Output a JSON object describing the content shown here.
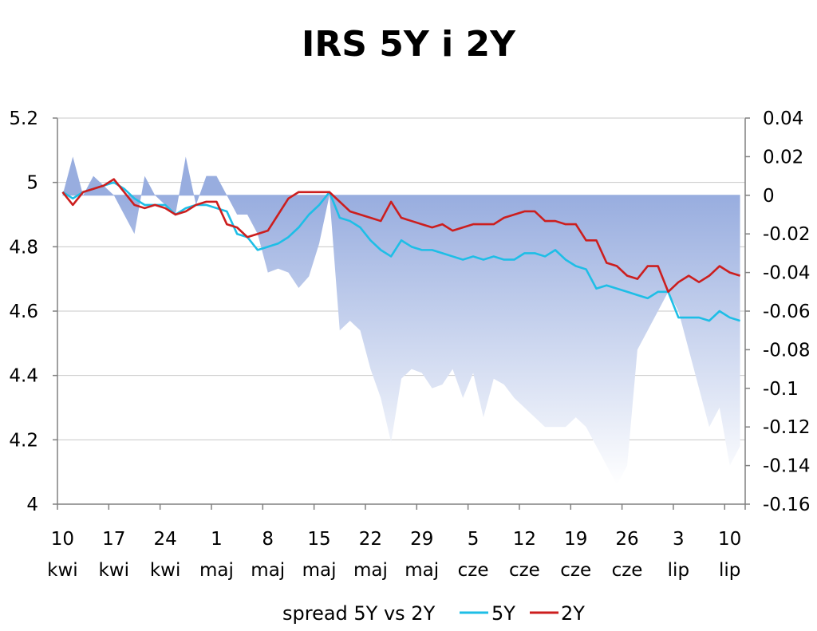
{
  "chart_data": {
    "type": "line",
    "title": "IRS 5Y i 2Y",
    "left_axis": {
      "min": 4,
      "max": 5.2,
      "step": 0.2,
      "ticks": [
        "4",
        "4.2",
        "4.4",
        "4.6",
        "4.8",
        "5",
        "5.2"
      ]
    },
    "right_axis": {
      "min": -0.16,
      "max": 0.04,
      "step": 0.02,
      "ticks": [
        "-0.16",
        "-0.14",
        "-0.12",
        "-0.1",
        "-0.08",
        "-0.06",
        "-0.04",
        "-0.02",
        "0",
        "0.02",
        "0.04"
      ]
    },
    "x_count": 67,
    "x_ticks": [
      {
        "index": 0,
        "day": "10",
        "month": "kwi"
      },
      {
        "index": 5,
        "day": "17",
        "month": "kwi"
      },
      {
        "index": 10,
        "day": "24",
        "month": "kwi"
      },
      {
        "index": 15,
        "day": "1",
        "month": "maj"
      },
      {
        "index": 20,
        "day": "8",
        "month": "maj"
      },
      {
        "index": 25,
        "day": "15",
        "month": "maj"
      },
      {
        "index": 30,
        "day": "22",
        "month": "maj"
      },
      {
        "index": 35,
        "day": "29",
        "month": "maj"
      },
      {
        "index": 40,
        "day": "5",
        "month": "cze"
      },
      {
        "index": 45,
        "day": "12",
        "month": "cze"
      },
      {
        "index": 50,
        "day": "19",
        "month": "cze"
      },
      {
        "index": 55,
        "day": "26",
        "month": "cze"
      },
      {
        "index": 60,
        "day": "3",
        "month": "lip"
      },
      {
        "index": 65,
        "day": "10",
        "month": "lip"
      }
    ],
    "series": [
      {
        "name": "spread 5Y vs 2Y",
        "kind": "area",
        "axis": "right",
        "color_top": "#98ADDF",
        "color_bottom": "#FFFFFF",
        "values": [
          0,
          0.02,
          0,
          0.01,
          0.005,
          0,
          -0.01,
          -0.02,
          0.01,
          0,
          -0.005,
          -0.01,
          0.02,
          -0.005,
          0.01,
          0.01,
          0,
          -0.01,
          -0.01,
          -0.02,
          -0.04,
          -0.038,
          -0.04,
          -0.048,
          -0.042,
          -0.025,
          0,
          -0.07,
          -0.065,
          -0.07,
          -0.09,
          -0.105,
          -0.128,
          -0.095,
          -0.09,
          -0.092,
          -0.1,
          -0.098,
          -0.09,
          -0.105,
          -0.092,
          -0.115,
          -0.095,
          -0.098,
          -0.105,
          -0.11,
          -0.115,
          -0.12,
          -0.12,
          -0.12,
          -0.115,
          -0.12,
          -0.13,
          -0.14,
          -0.15,
          -0.14,
          -0.08,
          -0.07,
          -0.06,
          -0.05,
          -0.06,
          -0.08,
          -0.1,
          -0.12,
          -0.11,
          -0.14,
          -0.13
        ]
      },
      {
        "name": "5Y",
        "kind": "line",
        "axis": "left",
        "color": "#1EBEE6",
        "values": [
          4.97,
          4.95,
          4.97,
          4.98,
          4.99,
          5.0,
          4.98,
          4.95,
          4.93,
          4.93,
          4.93,
          4.9,
          4.92,
          4.93,
          4.93,
          4.92,
          4.91,
          4.84,
          4.83,
          4.79,
          4.8,
          4.81,
          4.83,
          4.86,
          4.9,
          4.93,
          4.97,
          4.89,
          4.88,
          4.86,
          4.82,
          4.79,
          4.77,
          4.82,
          4.8,
          4.79,
          4.79,
          4.78,
          4.77,
          4.76,
          4.77,
          4.76,
          4.77,
          4.76,
          4.76,
          4.78,
          4.78,
          4.77,
          4.79,
          4.76,
          4.74,
          4.73,
          4.67,
          4.68,
          4.67,
          4.66,
          4.65,
          4.64,
          4.66,
          4.66,
          4.58,
          4.58,
          4.58,
          4.57,
          4.6,
          4.58,
          4.57
        ]
      },
      {
        "name": "2Y",
        "kind": "line",
        "axis": "left",
        "color": "#CC1E1E",
        "values": [
          4.97,
          4.93,
          4.97,
          4.98,
          4.99,
          5.01,
          4.97,
          4.93,
          4.92,
          4.93,
          4.92,
          4.9,
          4.91,
          4.93,
          4.94,
          4.94,
          4.87,
          4.86,
          4.83,
          4.84,
          4.85,
          4.9,
          4.95,
          4.97,
          4.97,
          4.97,
          4.97,
          4.94,
          4.91,
          4.9,
          4.89,
          4.88,
          4.94,
          4.89,
          4.88,
          4.87,
          4.86,
          4.87,
          4.85,
          4.86,
          4.87,
          4.87,
          4.87,
          4.89,
          4.9,
          4.91,
          4.91,
          4.88,
          4.88,
          4.87,
          4.87,
          4.82,
          4.82,
          4.75,
          4.74,
          4.71,
          4.7,
          4.74,
          4.74,
          4.66,
          4.69,
          4.71,
          4.69,
          4.71,
          4.74,
          4.72,
          4.71
        ]
      }
    ],
    "legend": {
      "position": "bottom",
      "items": [
        "spread 5Y vs 2Y",
        "5Y",
        "2Y"
      ]
    }
  }
}
